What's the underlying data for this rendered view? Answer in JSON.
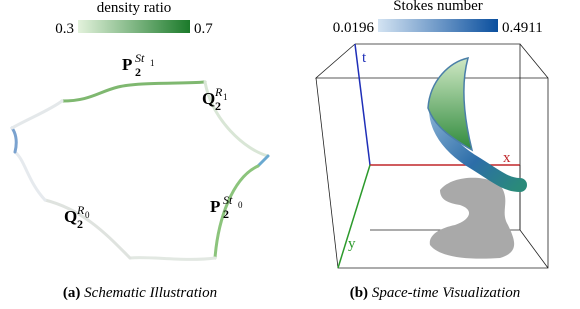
{
  "panel_a": {
    "colorbar": {
      "title": "density ratio",
      "min": 0.3,
      "max": 0.7
    },
    "labels": [
      {
        "base": "P",
        "sub": "2",
        "sup": "St",
        "sup_sub": "1"
      },
      {
        "base": "Q",
        "sub": "2",
        "sup": "R",
        "sup_sub": "1"
      },
      {
        "base": "Q",
        "sub": "2",
        "sup": "R",
        "sup_sub": "0"
      },
      {
        "base": "P",
        "sub": "2",
        "sup": "St",
        "sup_sub": "0"
      }
    ],
    "caption": {
      "tag": "(a)",
      "text": "Schematic Illustration"
    }
  },
  "panel_b": {
    "colorbar": {
      "title": "Stokes number",
      "min": 0.0196,
      "max": 0.4911
    },
    "axes": {
      "t": "t",
      "x": "x",
      "y": "y"
    },
    "caption": {
      "tag": "(b)",
      "text": "Space-time Visualization"
    }
  }
}
